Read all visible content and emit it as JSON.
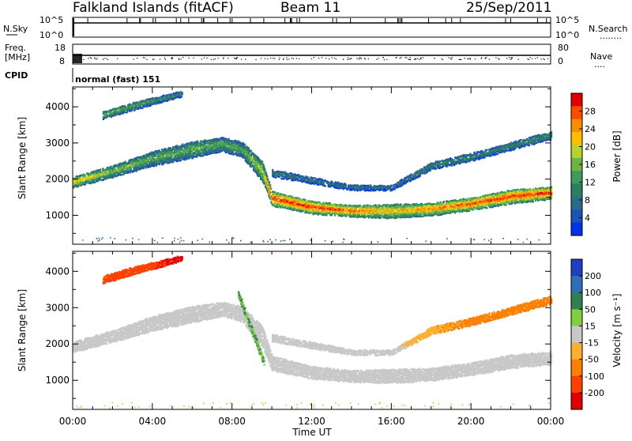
{
  "header": {
    "station": "Falkland Islands (fitACF)",
    "beam": "Beam 11",
    "date": "25/Sep/2011"
  },
  "top_panels": {
    "nsky": {
      "label": "N.Sky",
      "ticks": [
        "10^5",
        "10^0"
      ]
    },
    "nsearch": {
      "label": "N.Search",
      "marker": "........"
    },
    "freq": {
      "label_line1": "Freq.",
      "label_line2": "[MHz]",
      "ticks": [
        "18",
        "8"
      ]
    },
    "nave": {
      "label": "Nave",
      "ticks": [
        "80",
        "0"
      ],
      "marker": "...."
    },
    "cpid": {
      "label": "CPID",
      "value": "normal (fast) 151"
    }
  },
  "colorbars": {
    "power": {
      "label": "Power [dB]",
      "ticks": [
        "28",
        "24",
        "20",
        "16",
        "12",
        "8",
        "4"
      ],
      "colors": [
        "#e00000",
        "#ff4a00",
        "#ff8c00",
        "#ffbf00",
        "#b7d32b",
        "#6db347",
        "#3f9a5e",
        "#2c7e62",
        "#2c6a86",
        "#1c54b5",
        "#0033e6"
      ]
    },
    "velocity": {
      "label": "Velocity [m s⁻¹]",
      "ticks": [
        "200",
        "100",
        "50",
        "15",
        "-15",
        "-50",
        "-100",
        "-200"
      ],
      "colors": [
        "#1f3fbf",
        "#2f6fb7",
        "#2f7f4f",
        "#7fcf3f",
        "#c8c8c8",
        "#ffaf2f",
        "#ff7f00",
        "#ff4000",
        "#e00000"
      ]
    }
  },
  "chart_data": [
    {
      "type": "heatmap",
      "title": "Power",
      "xlabel": "Time UT",
      "ylabel": "Slant Range [km]",
      "x_ticks": [
        "00:00",
        "04:00",
        "08:00",
        "12:00",
        "16:00",
        "20:00",
        "00:00"
      ],
      "y_ticks": [
        1000,
        2000,
        3000,
        4000
      ],
      "ylim": [
        200,
        4550
      ],
      "xlim_hours": [
        0,
        24
      ],
      "zlabel": "Power [dB]",
      "zlim": [
        0,
        30
      ],
      "bands": [
        {
          "name": "main",
          "hours": [
            0,
            2,
            4,
            6,
            7.5,
            8.5,
            9.5,
            10,
            12,
            14,
            16,
            18,
            20,
            22,
            24
          ],
          "center_km": [
            1950,
            2250,
            2600,
            2850,
            3000,
            2850,
            2250,
            1500,
            1250,
            1150,
            1150,
            1200,
            1350,
            1550,
            1650
          ],
          "width_km": [
            300,
            320,
            400,
            450,
            380,
            420,
            550,
            400,
            350,
            320,
            380,
            350,
            350,
            380,
            350
          ],
          "peak_db": [
            22,
            16,
            14,
            14,
            14,
            14,
            18,
            28,
            28,
            26,
            22,
            24,
            26,
            28,
            28
          ]
        },
        {
          "name": "upper",
          "hours": [
            10,
            12,
            14,
            16,
            18,
            20,
            22,
            24
          ],
          "center_km": [
            2200,
            2000,
            1800,
            1800,
            2400,
            2650,
            2950,
            3250
          ],
          "width_km": [
            200,
            180,
            150,
            150,
            200,
            220,
            220,
            220
          ],
          "peak_db": [
            10,
            8,
            8,
            8,
            10,
            10,
            10,
            12
          ]
        },
        {
          "name": "far",
          "hours": [
            1.5,
            3,
            5.5
          ],
          "center_km": [
            3800,
            4050,
            4400
          ],
          "width_km": [
            200,
            220,
            150
          ],
          "peak_db": [
            14,
            14,
            10
          ]
        }
      ]
    },
    {
      "type": "heatmap",
      "title": "Velocity",
      "xlabel": "Time UT",
      "ylabel": "Slant Range [km]",
      "x_ticks": [
        "00:00",
        "04:00",
        "08:00",
        "12:00",
        "16:00",
        "20:00",
        "00:00"
      ],
      "y_ticks": [
        1000,
        2000,
        3000,
        4000
      ],
      "ylim": [
        200,
        4550
      ],
      "xlim_hours": [
        0,
        24
      ],
      "zlabel": "Velocity [m s-1]",
      "zlim": [
        -200,
        200
      ],
      "bands": [
        {
          "name": "main",
          "hours": [
            0,
            2,
            4,
            6,
            7.5,
            8.5,
            9.5,
            10,
            12,
            14,
            16,
            18,
            20,
            22,
            24
          ],
          "center_km": [
            1950,
            2250,
            2600,
            2850,
            3000,
            2850,
            2250,
            1500,
            1250,
            1150,
            1150,
            1200,
            1350,
            1550,
            1650
          ],
          "width_km": [
            300,
            320,
            400,
            450,
            380,
            420,
            550,
            400,
            350,
            320,
            380,
            350,
            350,
            380,
            350
          ],
          "velocity_ms": [
            0,
            0,
            0,
            0,
            0,
            0,
            0,
            0,
            0,
            0,
            0,
            0,
            0,
            0,
            0
          ]
        },
        {
          "name": "descending",
          "hours": [
            8.3,
            9.6
          ],
          "center_km": [
            3400,
            1500
          ],
          "width_km": [
            200,
            200
          ],
          "velocity_ms": [
            30,
            30
          ]
        },
        {
          "name": "upper",
          "hours": [
            10,
            12,
            14,
            16,
            18,
            20,
            22,
            24
          ],
          "center_km": [
            2200,
            2000,
            1800,
            1800,
            2400,
            2650,
            2950,
            3250
          ],
          "width_km": [
            200,
            180,
            150,
            150,
            200,
            220,
            220,
            220
          ],
          "velocity_ms": [
            0,
            0,
            0,
            0,
            -40,
            -60,
            -60,
            -60
          ]
        },
        {
          "name": "far",
          "hours": [
            1.5,
            3,
            5.5
          ],
          "center_km": [
            3800,
            4050,
            4400
          ],
          "width_km": [
            200,
            220,
            150
          ],
          "velocity_ms": [
            -100,
            -150,
            -200
          ]
        }
      ]
    }
  ]
}
